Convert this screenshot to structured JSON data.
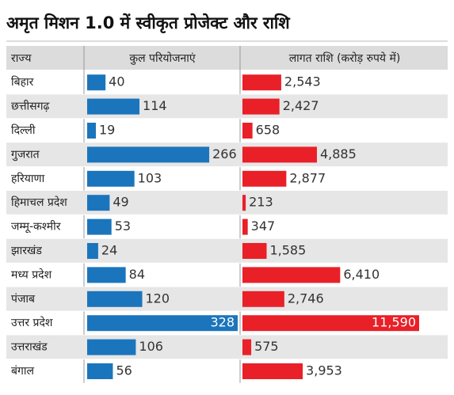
{
  "chart_data": {
    "type": "bar-table",
    "title": "अमृत मिशन 1.0 में स्वीकृत प्रोजेक्ट और राशि",
    "row_header": "राज्य",
    "categories": [
      "बिहार",
      "छत्तीसगढ़",
      "दिल्ली",
      "गुजरात",
      "हरियाणा",
      "हिमाचल प्रदेश",
      "जम्मू-कश्मीर",
      "झारखंड",
      "मध्य प्रदेश",
      "पंजाब",
      "उत्तर प्रदेश",
      "उत्तराखंड",
      "बंगाल"
    ],
    "series": [
      {
        "name": "कुल परियोजनाएं",
        "color": "#1b75bc",
        "values": [
          40,
          114,
          19,
          266,
          103,
          49,
          53,
          24,
          84,
          120,
          328,
          106,
          56
        ]
      },
      {
        "name": "लागत राशि (करोड़ रुपये में)",
        "color": "#e92028",
        "values": [
          2543,
          2427,
          658,
          4885,
          2877,
          213,
          347,
          1585,
          6410,
          2746,
          11590,
          575,
          3953
        ],
        "value_labels": [
          "2,543",
          "2,427",
          "658",
          "4,885",
          "2,877",
          "213",
          "347",
          "1,585",
          "6,410",
          "2,746",
          "11,590",
          "575",
          "3,953"
        ]
      }
    ]
  }
}
